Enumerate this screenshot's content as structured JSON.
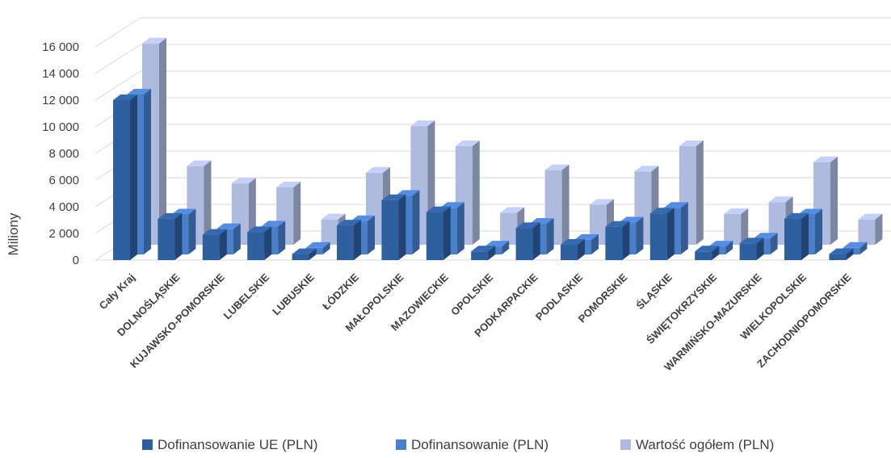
{
  "chart_data": {
    "type": "bar",
    "title": "",
    "xlabel": "",
    "ylabel": "Miliony",
    "ylim": [
      0,
      16000
    ],
    "yticks": [
      0,
      2000,
      4000,
      6000,
      8000,
      10000,
      12000,
      14000,
      16000
    ],
    "ytick_labels": [
      "0",
      "2 000",
      "4 000",
      "6 000",
      "8 000",
      "10 000",
      "12 000",
      "14 000",
      "16 000"
    ],
    "grid": true,
    "legend_position": "bottom",
    "categories": [
      "Cały Kraj",
      "DOLNOŚLĄSKIE",
      "KUJAWSKO-POMORSKIE",
      "LUBELSKIE",
      "LUBUSKIE",
      "ŁÓDZKIE",
      "MAŁOPOLSKIE",
      "MAZOWIECKIE",
      "OPOLSKIE",
      "PODKARPACKIE",
      "PODLASKIE",
      "POMORSKIE",
      "ŚLĄSKIE",
      "ŚWIĘTOKRZYSKIE",
      "WARMIŃSKO-MAZURSKIE",
      "WIELKOPOLSKIE",
      "ZACHODNIOPOMORSKIE"
    ],
    "series": [
      {
        "name": "Dofinansowanie UE (PLN)",
        "color": "#2e5f9e",
        "values": [
          12000,
          3100,
          1900,
          2100,
          450,
          2600,
          4500,
          3600,
          650,
          2400,
          1150,
          2500,
          3500,
          650,
          1250,
          3100,
          450
        ]
      },
      {
        "name": "Dofinansowanie (PLN)",
        "color": "#4a7fcc",
        "values": [
          12000,
          3000,
          1900,
          2100,
          500,
          2500,
          4400,
          3500,
          600,
          2300,
          1100,
          2400,
          3500,
          600,
          1200,
          3000,
          500
        ]
      },
      {
        "name": "Wartość ogółem (PLN)",
        "color": "#aebbdf",
        "values": [
          15100,
          5900,
          4600,
          4300,
          1900,
          5400,
          8900,
          7400,
          2400,
          5600,
          3000,
          5500,
          7400,
          2300,
          3200,
          6200,
          1900
        ]
      }
    ]
  }
}
